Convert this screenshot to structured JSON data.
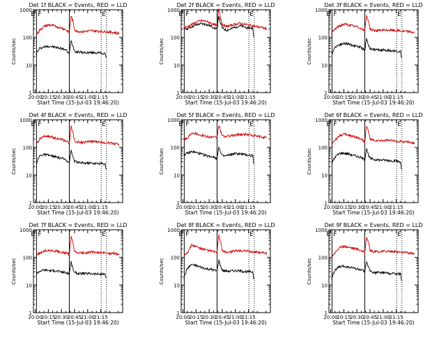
{
  "chart_data": {
    "type": "line",
    "ylabel": "Counts/sec",
    "xlabel": "Start Time (15-Jul-03 19:46:20)",
    "ylim": [
      1,
      1000
    ],
    "yscale": "log",
    "xlim_minutes": [
      -2,
      100
    ],
    "x_tick_labels": [
      "20:00",
      "20:15",
      "20:30",
      "20:45",
      "21:00",
      "21:15"
    ],
    "x_ticks_minutes": [
      0,
      15,
      30,
      45,
      60,
      75
    ],
    "y_tick_labels": [
      "1",
      "10",
      "100",
      "1000"
    ],
    "marker_labels": {
      "E": "E",
      "F": "F"
    },
    "markers_minutes": {
      "E_start": 1.5,
      "solid_line": 39,
      "dotted_1": 75.5,
      "dotted_2": 81.5
    },
    "colors": {
      "events": "#000000",
      "lld": "#cc0000"
    },
    "panels": [
      {
        "title": "Det  1f  BLACK = Events, RED = LLD",
        "series": [
          {
            "name": "Events",
            "color": "#000000",
            "x": [
              1,
              5,
              10,
              15,
              20,
              25,
              30,
              35,
              39,
              41,
              43,
              45,
              47,
              50,
              55,
              60,
              65,
              70,
              75,
              80,
              81
            ],
            "y": [
              25,
              40,
              45,
              48,
              46,
              42,
              40,
              35,
              25,
              80,
              50,
              33,
              30,
              30,
              28,
              28,
              28,
              28,
              27,
              25,
              18
            ]
          },
          {
            "name": "LLD",
            "color": "#cc0000",
            "x": [
              1,
              5,
              10,
              15,
              20,
              25,
              30,
              35,
              39,
              41,
              43,
              45,
              47,
              50,
              55,
              60,
              65,
              70,
              75,
              80,
              85,
              90,
              96
            ],
            "y": [
              120,
              180,
              250,
              280,
              270,
              240,
              220,
              190,
              150,
              600,
              400,
              190,
              170,
              165,
              160,
              170,
              175,
              170,
              165,
              160,
              155,
              150,
              140
            ]
          }
        ]
      },
      {
        "title": "Det  2f  BLACK = Events, RED = LLD",
        "series": [
          {
            "name": "Events",
            "color": "#000000",
            "x": [
              1,
              5,
              10,
              15,
              20,
              25,
              30,
              35,
              39,
              41,
              43,
              45,
              47,
              50,
              55,
              60,
              65,
              70,
              75,
              80,
              81
            ],
            "y": [
              200,
              210,
              240,
              280,
              310,
              300,
              270,
              230,
              200,
              600,
              320,
              220,
              200,
              180,
              200,
              240,
              260,
              240,
              220,
              210,
              100
            ]
          },
          {
            "name": "LLD",
            "color": "#cc0000",
            "x": [
              1,
              5,
              10,
              15,
              20,
              25,
              30,
              35,
              39,
              41,
              43,
              45,
              47,
              50,
              55,
              60,
              65,
              70,
              75,
              80,
              85,
              90,
              96
            ],
            "y": [
              220,
              240,
              290,
              350,
              400,
              390,
              350,
              300,
              260,
              1100,
              550,
              300,
              270,
              250,
              270,
              300,
              320,
              300,
              280,
              260,
              240,
              230,
              200
            ]
          }
        ]
      },
      {
        "title": "Det  3f  BLACK = Events, RED = LLD",
        "series": [
          {
            "name": "Events",
            "color": "#000000",
            "x": [
              1,
              5,
              10,
              15,
              20,
              25,
              30,
              35,
              39,
              41,
              43,
              45,
              47,
              50,
              55,
              60,
              65,
              70,
              75,
              80,
              81
            ],
            "y": [
              25,
              45,
              55,
              60,
              58,
              52,
              48,
              42,
              35,
              90,
              55,
              40,
              38,
              36,
              35,
              35,
              34,
              33,
              32,
              30,
              18
            ]
          },
          {
            "name": "LLD",
            "color": "#cc0000",
            "x": [
              1,
              5,
              10,
              15,
              20,
              25,
              30,
              35,
              39,
              41,
              43,
              45,
              47,
              50,
              55,
              60,
              65,
              70,
              75,
              80,
              85,
              90,
              96
            ],
            "y": [
              140,
              200,
              260,
              300,
              290,
              260,
              240,
              210,
              170,
              600,
              420,
              210,
              190,
              180,
              175,
              180,
              185,
              180,
              175,
              170,
              165,
              160,
              150
            ]
          }
        ]
      },
      {
        "title": "Det  4f  BLACK = Events, RED = LLD",
        "series": [
          {
            "name": "Events",
            "color": "#000000",
            "x": [
              1,
              5,
              10,
              15,
              20,
              25,
              30,
              35,
              39,
              41,
              43,
              45,
              47,
              50,
              55,
              60,
              65,
              70,
              75,
              80,
              81
            ],
            "y": [
              25,
              50,
              55,
              52,
              48,
              44,
              40,
              36,
              28,
              75,
              48,
              32,
              30,
              28,
              27,
              27,
              27,
              26,
              26,
              25,
              16
            ]
          },
          {
            "name": "LLD",
            "color": "#cc0000",
            "x": [
              1,
              5,
              10,
              15,
              20,
              25,
              30,
              35,
              39,
              41,
              43,
              45,
              47,
              50,
              55,
              60,
              65,
              70,
              75,
              80,
              85,
              90,
              96
            ],
            "y": [
              120,
              200,
              260,
              250,
              230,
              210,
              190,
              170,
              140,
              550,
              380,
              180,
              160,
              155,
              150,
              160,
              165,
              160,
              155,
              150,
              145,
              140,
              130
            ]
          }
        ]
      },
      {
        "title": "Det  5f  BLACK = Events, RED = LLD",
        "series": [
          {
            "name": "Events",
            "color": "#000000",
            "x": [
              1,
              5,
              10,
              15,
              20,
              25,
              30,
              35,
              39,
              41,
              43,
              45,
              47,
              50,
              55,
              60,
              65,
              70,
              75,
              80,
              81
            ],
            "y": [
              55,
              60,
              70,
              65,
              58,
              52,
              48,
              45,
              40,
              110,
              65,
              50,
              48,
              50,
              55,
              60,
              58,
              55,
              52,
              50,
              25
            ]
          },
          {
            "name": "LLD",
            "color": "#cc0000",
            "x": [
              1,
              5,
              10,
              15,
              20,
              25,
              30,
              35,
              39,
              41,
              43,
              45,
              47,
              50,
              55,
              60,
              65,
              70,
              75,
              80,
              85,
              90,
              96
            ],
            "y": [
              200,
              210,
              350,
              320,
              280,
              260,
              240,
              230,
              230,
              650,
              380,
              260,
              250,
              250,
              260,
              280,
              290,
              300,
              290,
              270,
              250,
              240,
              220
            ]
          }
        ]
      },
      {
        "title": "Det  6f  BLACK = Events, RED = LLD",
        "series": [
          {
            "name": "Events",
            "color": "#000000",
            "x": [
              1,
              5,
              10,
              15,
              20,
              25,
              30,
              35,
              39,
              41,
              43,
              45,
              47,
              50,
              55,
              60,
              65,
              70,
              75,
              80,
              81
            ],
            "y": [
              25,
              45,
              60,
              62,
              58,
              52,
              48,
              42,
              35,
              95,
              55,
              40,
              38,
              36,
              35,
              35,
              34,
              33,
              32,
              30,
              16
            ]
          },
          {
            "name": "LLD",
            "color": "#cc0000",
            "x": [
              1,
              5,
              10,
              15,
              20,
              25,
              30,
              35,
              39,
              41,
              43,
              45,
              47,
              50,
              55,
              60,
              65,
              70,
              75,
              80,
              85,
              90,
              96
            ],
            "y": [
              130,
              180,
              270,
              300,
              280,
              250,
              230,
              200,
              160,
              580,
              400,
              200,
              185,
              175,
              170,
              175,
              180,
              175,
              170,
              165,
              160,
              155,
              145
            ]
          }
        ]
      },
      {
        "title": "Det  7f  BLACK = Events, RED = LLD",
        "series": [
          {
            "name": "Events",
            "color": "#000000",
            "x": [
              1,
              5,
              10,
              15,
              20,
              25,
              30,
              35,
              39,
              41,
              43,
              45,
              47,
              50,
              55,
              60,
              65,
              70,
              75,
              80,
              81
            ],
            "y": [
              25,
              32,
              35,
              34,
              33,
              32,
              30,
              28,
              25,
              70,
              40,
              28,
              27,
              26,
              26,
              26,
              26,
              25,
              25,
              24,
              18
            ]
          },
          {
            "name": "LLD",
            "color": "#cc0000",
            "x": [
              1,
              5,
              10,
              15,
              20,
              25,
              30,
              35,
              39,
              41,
              43,
              45,
              47,
              50,
              55,
              60,
              65,
              70,
              75,
              80,
              85,
              90,
              96
            ],
            "y": [
              120,
              140,
              170,
              180,
              175,
              165,
              155,
              145,
              130,
              550,
              360,
              160,
              150,
              145,
              145,
              150,
              155,
              150,
              148,
              145,
              140,
              138,
              130
            ]
          }
        ]
      },
      {
        "title": "Det  8f  BLACK = Events, RED = LLD",
        "series": [
          {
            "name": "Events",
            "color": "#000000",
            "x": [
              1,
              5,
              10,
              15,
              20,
              25,
              30,
              35,
              39,
              41,
              43,
              45,
              47,
              50,
              55,
              60,
              65,
              70,
              75,
              80,
              81
            ],
            "y": [
              18,
              40,
              55,
              50,
              45,
              40,
              38,
              35,
              32,
              80,
              48,
              35,
              33,
              32,
              32,
              33,
              32,
              31,
              30,
              30,
              16
            ]
          },
          {
            "name": "LLD",
            "color": "#cc0000",
            "x": [
              1,
              5,
              10,
              15,
              20,
              25,
              30,
              35,
              39,
              41,
              43,
              45,
              47,
              50,
              55,
              60,
              65,
              70,
              75,
              80,
              85,
              90,
              96
            ],
            "y": [
              120,
              150,
              280,
              250,
              210,
              190,
              175,
              165,
              150,
              620,
              380,
              170,
              160,
              155,
              160,
              170,
              175,
              170,
              165,
              160,
              155,
              150,
              140
            ]
          }
        ]
      },
      {
        "title": "Det  9f  BLACK = Events, RED = LLD",
        "series": [
          {
            "name": "Events",
            "color": "#000000",
            "x": [
              1,
              5,
              10,
              15,
              20,
              25,
              30,
              35,
              39,
              41,
              43,
              45,
              47,
              50,
              55,
              60,
              65,
              70,
              75,
              80,
              81
            ],
            "y": [
              18,
              35,
              45,
              48,
              45,
              42,
              38,
              35,
              30,
              75,
              45,
              32,
              30,
              28,
              28,
              28,
              27,
              26,
              26,
              25,
              14
            ]
          },
          {
            "name": "LLD",
            "color": "#cc0000",
            "x": [
              1,
              5,
              10,
              15,
              20,
              25,
              30,
              35,
              39,
              41,
              43,
              45,
              47,
              50,
              55,
              60,
              65,
              70,
              75,
              80,
              85,
              90,
              96
            ],
            "y": [
              110,
              150,
              220,
              250,
              240,
              220,
              200,
              180,
              150,
              550,
              380,
              180,
              165,
              160,
              160,
              165,
              170,
              165,
              160,
              155,
              150,
              145,
              135
            ]
          }
        ]
      }
    ]
  }
}
